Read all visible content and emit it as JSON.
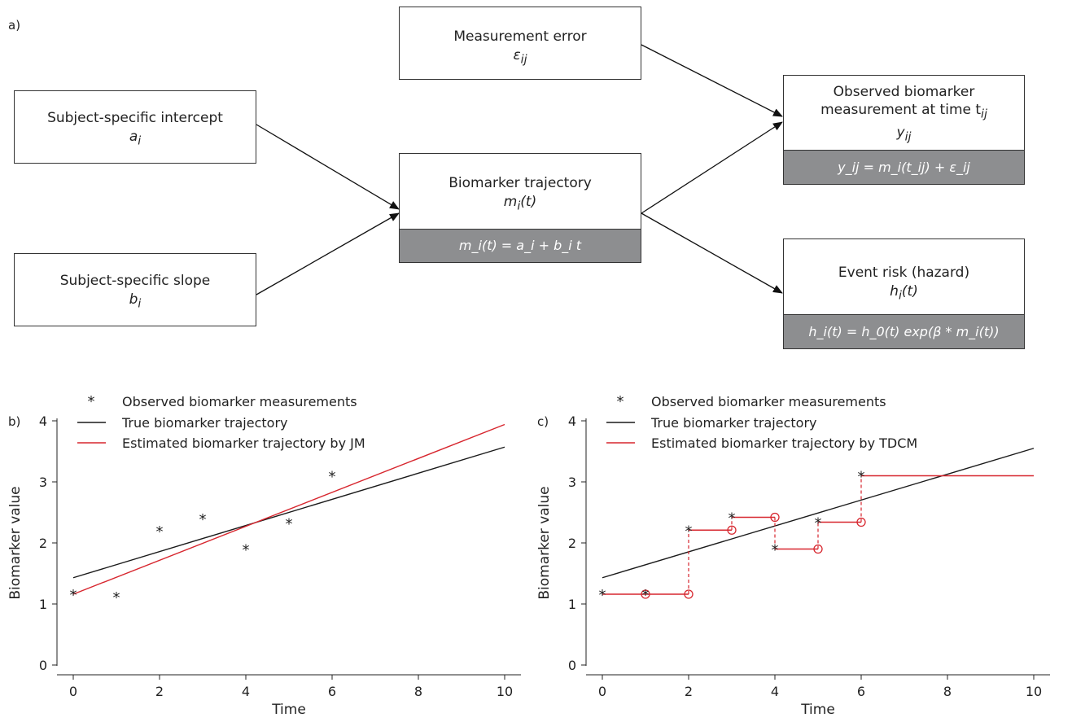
{
  "panel_a": {
    "label": "a)",
    "boxes": {
      "measurement_error": {
        "title": "Measurement error",
        "var": "ε",
        "sub": "ij"
      },
      "intercept": {
        "title": "Subject-specific intercept",
        "var": "a",
        "sub": "i"
      },
      "slope": {
        "title": "Subject-specific slope",
        "var": "b",
        "sub": "i"
      },
      "trajectory": {
        "title": "Biomarker trajectory",
        "var": "m",
        "sub": "i",
        "suffix": "(t)",
        "formula": "m_i(t) = a_i + b_i t"
      },
      "observed": {
        "title_line1": "Observed biomarker",
        "title_line2": "measurement at time t",
        "title_sub": "ij",
        "var": "y",
        "sub": "ij",
        "formula": "y_ij = m_i(t_ij) + ε_ij"
      },
      "event": {
        "title": "Event risk (hazard)",
        "var": "h",
        "sub": "i",
        "suffix": "(t)",
        "formula": "h_i(t) = h_0(t) exp(β * m_i(t))"
      }
    }
  },
  "colors": {
    "black_line": "#1a1a1a",
    "red_line": "#d7262e",
    "formula_bg": "#8d8e90"
  },
  "chart_data": [
    {
      "panel_label": "b)",
      "type": "line",
      "xlabel": "Time",
      "ylabel": "Biomarker value",
      "xlim": [
        0,
        10
      ],
      "ylim": [
        0,
        4
      ],
      "xticks": [
        0,
        2,
        4,
        6,
        8,
        10
      ],
      "yticks": [
        0,
        1,
        2,
        3,
        4
      ],
      "legend": [
        {
          "marker": "*",
          "label": "Observed biomarker measurements"
        },
        {
          "marker": "line-black",
          "label": "True biomarker trajectory"
        },
        {
          "marker": "line-red",
          "label": "Estimated biomarker trajectory by JM"
        }
      ],
      "observed": [
        [
          0,
          1.16
        ],
        [
          1,
          1.12
        ],
        [
          2,
          2.2
        ],
        [
          3,
          2.4
        ],
        [
          4,
          1.9
        ],
        [
          5,
          2.33
        ],
        [
          6,
          3.1
        ]
      ],
      "true_line": [
        [
          0,
          1.43
        ],
        [
          10,
          3.57
        ]
      ],
      "estimated_line": [
        [
          0,
          1.16
        ],
        [
          10,
          3.94
        ]
      ]
    },
    {
      "panel_label": "c)",
      "type": "line",
      "xlabel": "Time",
      "ylabel": "Biomarker value",
      "xlim": [
        0,
        10
      ],
      "ylim": [
        0,
        4
      ],
      "xticks": [
        0,
        2,
        4,
        6,
        8,
        10
      ],
      "yticks": [
        0,
        1,
        2,
        3,
        4
      ],
      "legend": [
        {
          "marker": "*",
          "label": "Observed biomarker measurements"
        },
        {
          "marker": "line-black",
          "label": "True biomarker trajectory"
        },
        {
          "marker": "line-red",
          "label": "Estimated biomarker trajectory by TDCM"
        }
      ],
      "observed": [
        [
          0,
          1.16
        ],
        [
          1,
          1.16
        ],
        [
          2,
          2.21
        ],
        [
          3,
          2.42
        ],
        [
          4,
          1.9
        ],
        [
          5,
          2.34
        ],
        [
          6,
          3.1
        ]
      ],
      "true_line": [
        [
          0,
          1.43
        ],
        [
          10,
          3.55
        ]
      ],
      "step_end": 10
    }
  ]
}
